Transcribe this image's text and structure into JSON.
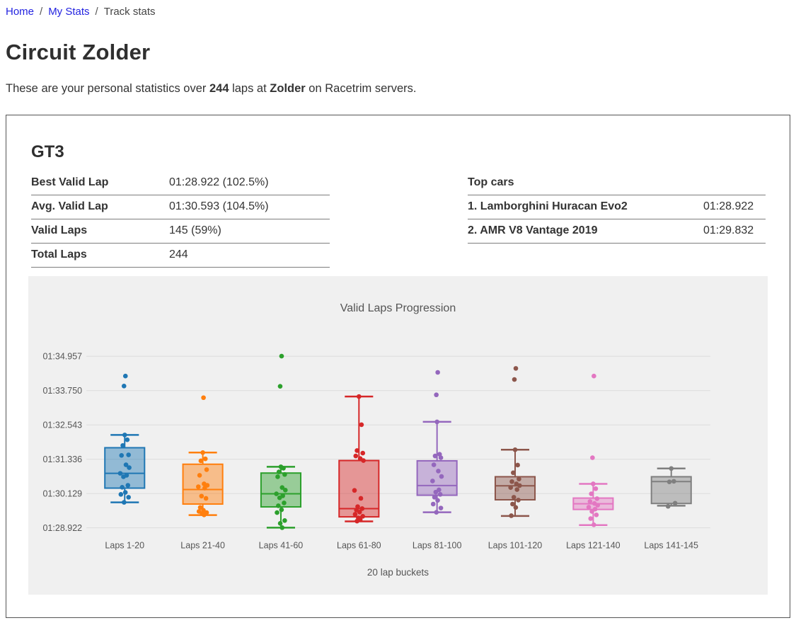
{
  "colors": {
    "link": "#2323e0",
    "panel_bg": "#f0f0f0",
    "grid": "#dcdcdc",
    "muted_text": "#555555",
    "card_border": "#555555",
    "row_border": "#7d7d7d"
  },
  "breadcrumb": {
    "home": "Home",
    "my_stats": "My Stats",
    "current": "Track stats",
    "separator": "/"
  },
  "page": {
    "title": "Circuit Zolder",
    "intro_pre": "These are your personal statistics over ",
    "intro_laps": "244",
    "intro_mid": " laps at ",
    "intro_track": "Zolder",
    "intro_post": " on Racetrim servers."
  },
  "card": {
    "class_title": "GT3",
    "stats": {
      "rows": [
        {
          "label": "Best Valid Lap",
          "value": "01:28.922 (102.5%)"
        },
        {
          "label": "Avg. Valid Lap",
          "value": "01:30.593 (104.5%)"
        },
        {
          "label": "Valid Laps",
          "value": "145 (59%)"
        },
        {
          "label": "Total Laps",
          "value": "244"
        }
      ]
    },
    "top_cars": {
      "header": "Top cars",
      "rows": [
        {
          "name": "1. Lamborghini Huracan Evo2",
          "time": "01:28.922"
        },
        {
          "name": "2. AMR V8 Vantage 2019",
          "time": "01:29.832"
        }
      ]
    }
  },
  "chart_data": {
    "type": "boxplot",
    "title": "Valid Laps Progression",
    "xlabel": "20 lap buckets",
    "ylabel": "",
    "unit": "lap time in seconds, displayed as mm:ss.mmm",
    "grid": true,
    "legend": "none",
    "ytick_labels": [
      "01:34.957",
      "01:33.750",
      "01:32.543",
      "01:31.336",
      "01:30.129",
      "01:28.922"
    ],
    "ytick_values": [
      94.957,
      93.75,
      92.543,
      91.336,
      90.129,
      88.922
    ],
    "ylim": [
      88.5,
      95.6
    ],
    "categories": [
      "Laps 1-20",
      "Laps 21-40",
      "Laps 41-60",
      "Laps 61-80",
      "Laps 81-100",
      "Laps 101-120",
      "Laps 121-140",
      "Laps 141-145"
    ],
    "series": [
      {
        "label": "Laps 1-20",
        "color": "#1f77b4",
        "box": {
          "whisker_low": 89.82,
          "q1": 90.32,
          "median": 90.84,
          "q3": 91.74,
          "whisker_high": 92.19
        },
        "outliers": [
          94.26,
          93.91
        ],
        "points": [
          92.19,
          92.02,
          91.82,
          91.49,
          91.47,
          91.14,
          91.04,
          90.84,
          90.77,
          90.72,
          90.42,
          90.35,
          90.17,
          90.1,
          90.0,
          89.82
        ]
      },
      {
        "label": "Laps 21-40",
        "color": "#ff7f0e",
        "box": {
          "whisker_low": 89.37,
          "q1": 89.76,
          "median": 90.27,
          "q3": 91.16,
          "whisker_high": 91.57
        },
        "outliers": [
          93.5
        ],
        "points": [
          91.57,
          91.35,
          91.28,
          90.97,
          90.77,
          90.47,
          90.42,
          90.37,
          90.32,
          90.04,
          89.96,
          89.64,
          89.54,
          89.5,
          89.46,
          89.42,
          89.38
        ]
      },
      {
        "label": "Laps 41-60",
        "color": "#2ca02c",
        "box": {
          "whisker_low": 88.93,
          "q1": 89.66,
          "median": 90.12,
          "q3": 90.85,
          "whisker_high": 91.07
        },
        "outliers": [
          94.96,
          93.9
        ],
        "points": [
          91.07,
          91.02,
          90.89,
          90.8,
          90.72,
          90.34,
          90.25,
          90.12,
          90.05,
          89.98,
          89.8,
          89.7,
          89.56,
          89.46,
          89.18,
          89.08,
          88.93
        ]
      },
      {
        "label": "Laps 61-80",
        "color": "#d62728",
        "box": {
          "whisker_low": 89.15,
          "q1": 89.31,
          "median": 89.6,
          "q3": 91.29,
          "whisker_high": 93.54
        },
        "outliers": [],
        "points": [
          93.54,
          92.55,
          91.64,
          91.55,
          91.45,
          91.36,
          91.29,
          90.24,
          89.96,
          89.67,
          89.6,
          89.55,
          89.48,
          89.4,
          89.33,
          89.27,
          89.21,
          89.16
        ]
      },
      {
        "label": "Laps 81-100",
        "color": "#9467bd",
        "box": {
          "whisker_low": 89.47,
          "q1": 90.07,
          "median": 90.41,
          "q3": 91.28,
          "whisker_high": 92.65
        },
        "outliers": [
          94.39,
          93.6
        ],
        "points": [
          92.65,
          91.51,
          91.45,
          91.39,
          91.14,
          90.92,
          90.73,
          90.57,
          90.26,
          90.18,
          90.1,
          90.0,
          89.89,
          89.76,
          89.62,
          89.47
        ]
      },
      {
        "label": "Laps 101-120",
        "color": "#8c564b",
        "box": {
          "whisker_low": 89.34,
          "q1": 89.91,
          "median": 90.4,
          "q3": 90.72,
          "whisker_high": 91.67
        },
        "outliers": [
          94.53,
          94.14
        ],
        "points": [
          91.67,
          91.13,
          90.86,
          90.64,
          90.55,
          90.47,
          90.41,
          90.34,
          90.27,
          90.0,
          89.9,
          89.76,
          89.64,
          89.35
        ]
      },
      {
        "label": "Laps 121-140",
        "color": "#e377c2",
        "box": {
          "whisker_low": 89.02,
          "q1": 89.57,
          "median": 89.77,
          "q3": 89.97,
          "whisker_high": 90.47
        },
        "outliers": [
          94.26,
          91.39
        ],
        "points": [
          90.47,
          90.3,
          90.12,
          89.95,
          89.85,
          89.78,
          89.72,
          89.65,
          89.58,
          89.5,
          89.38,
          89.25,
          89.03
        ]
      },
      {
        "label": "Laps 141-145",
        "color": "#7f7f7f",
        "box": {
          "whisker_low": 89.7,
          "q1": 89.78,
          "median": 90.55,
          "q3": 90.72,
          "whisker_high": 91.01
        },
        "outliers": [],
        "points": [
          91.01,
          90.56,
          90.54,
          89.79,
          89.68
        ]
      }
    ]
  }
}
